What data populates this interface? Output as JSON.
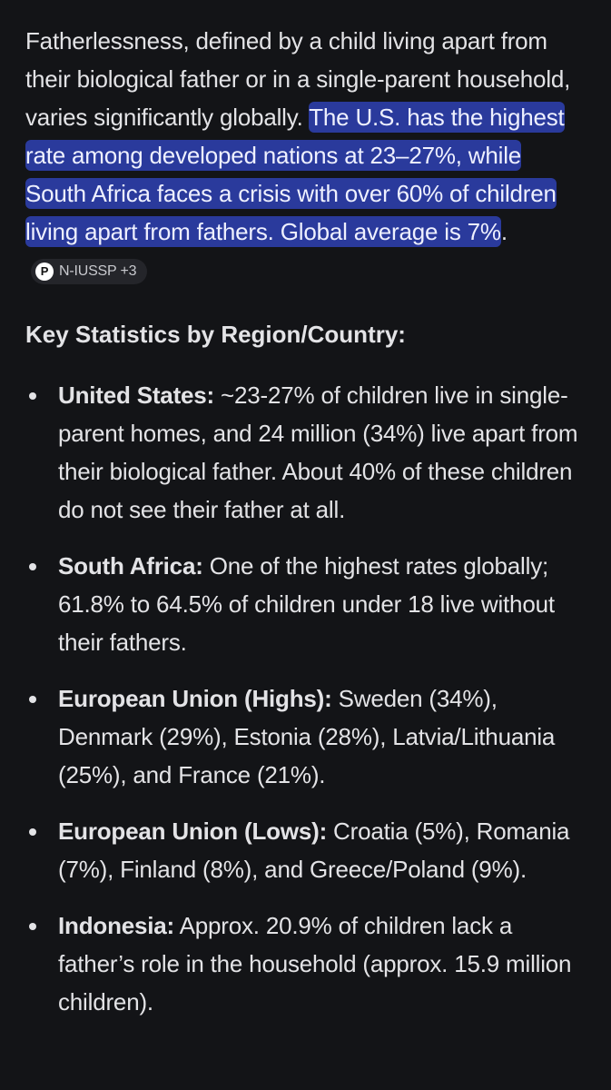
{
  "intro": {
    "plain": "Fatherlessness, defined by a child living apart from their biological father or in a single-parent household, varies significantly globally. ",
    "highlighted": "The U.S. has the highest rate among developed nations at 23–27%, while South Africa faces a crisis with over 60% of children living apart from fathers. Global average is 7%",
    "trailing": ".",
    "source_chip": {
      "icon": "source-logo-icon",
      "label": "N-IUSSP +3"
    }
  },
  "section_heading": "Key Statistics by Region/Country:",
  "items": [
    {
      "label": "United States:",
      "text": " ~23-27% of children live in single-parent homes, and 24 million (34%) live apart from their biological father. About 40% of these children do not see their father at all."
    },
    {
      "label": "South Africa:",
      "text": " One of the highest rates globally; 61.8% to 64.5% of children under 18 live without their fathers."
    },
    {
      "label": "European Union (Highs):",
      "text": " Sweden (34%), Denmark (29%), Estonia (28%), Latvia/Lithuania (25%), and France (21%)."
    },
    {
      "label": "European Union (Lows):",
      "text": " Croatia (5%), Romania (7%), Finland (8%), and Greece/Poland (9%)."
    },
    {
      "label": "Indonesia:",
      "text": " Approx. 20.9% of children lack a father’s role in the household (approx. 15.9 million children)."
    }
  ],
  "colors": {
    "background": "#131417",
    "highlight": "#2a3a9c",
    "text": "#e3e3e6"
  }
}
